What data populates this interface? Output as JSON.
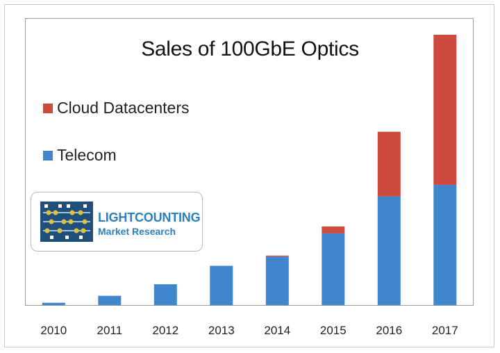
{
  "chart_data": {
    "type": "bar",
    "stacked": true,
    "title": "Sales of 100GbE Optics",
    "categories": [
      "2010",
      "2011",
      "2012",
      "2013",
      "2014",
      "2015",
      "2016",
      "2017"
    ],
    "series": [
      {
        "name": "Telecom",
        "color": "#3f86cc",
        "values": [
          1,
          4,
          9,
          17,
          21,
          31,
          47,
          52
        ]
      },
      {
        "name": "Cloud Datacenters",
        "color": "#cc4a3e",
        "values": [
          0,
          0,
          0,
          0,
          0.4,
          3,
          28,
          65
        ]
      }
    ],
    "ylim": [
      0,
      120
    ],
    "legend_position": "left",
    "grid": false
  },
  "logo": {
    "line1": "LIGHTCOUNTING",
    "line2": "Market Research"
  },
  "colors": {
    "telecom": "#3f86cc",
    "cloud": "#cc4a3e",
    "logo_dark": "#1f4f7a",
    "logo_accent": "#e0c23a"
  }
}
